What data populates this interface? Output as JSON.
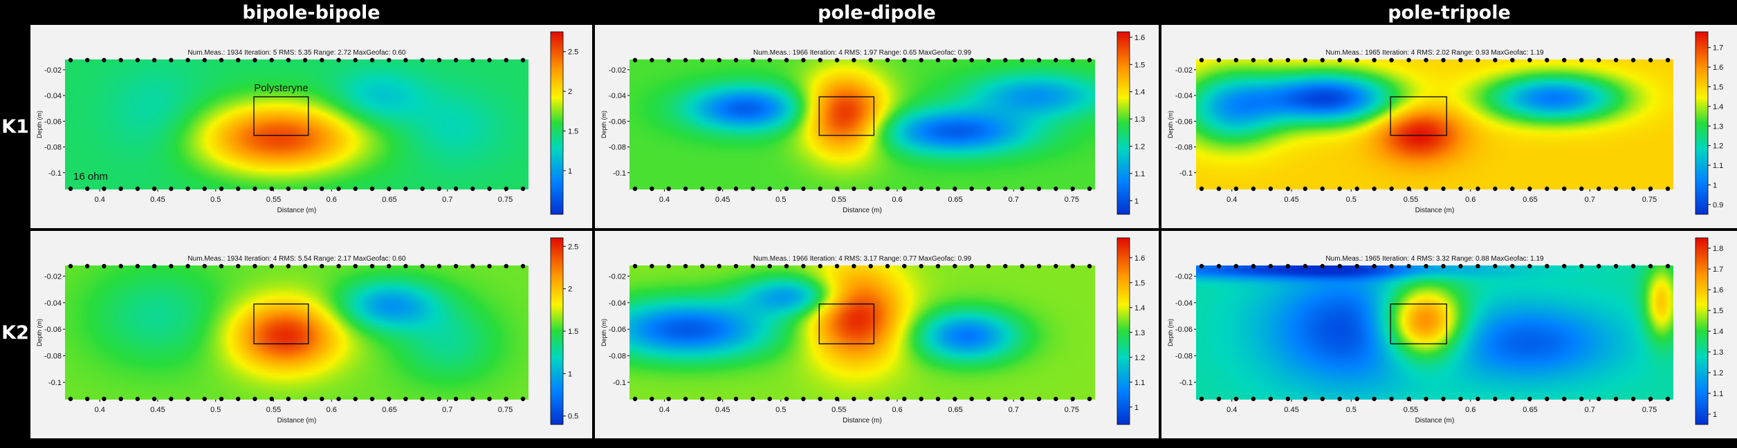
{
  "columns": [
    "bipole-bipole",
    "pole-dipole",
    "pole-tripole"
  ],
  "rows": [
    "K1",
    "K2"
  ],
  "colors": {
    "low": "#0030d0",
    "mid": "#f0f000",
    "high": "#e00000",
    "background": "#000000",
    "panel": "#f2f2f2"
  },
  "chart_data": [
    {
      "type": "heatmap",
      "configuration": "bipole-bipole",
      "row": "K1",
      "info": "Num.Meas.: 1934   Iteration: 5   RMS: 5.35   Range: 2.72   MaxGeofac: 0.60",
      "xlabel": "Distance (m)",
      "ylabel": "Depth (m)",
      "xticks": [
        "0.4",
        "0.45",
        "0.5",
        "0.55",
        "0.6",
        "0.65",
        "0.7",
        "0.75"
      ],
      "yticks": [
        "-0.02",
        "-0.04",
        "-0.06",
        "-0.08",
        "-0.1"
      ],
      "colorbar": {
        "ticks": [
          "1",
          "1.5",
          "2",
          "2.5"
        ],
        "range": [
          0.45,
          2.75
        ]
      },
      "xlim": [
        0.37,
        0.77
      ],
      "ylim": [
        -0.113,
        -0.012
      ],
      "target_box": {
        "x": [
          0.533,
          0.58
        ],
        "y": [
          -0.071,
          -0.041
        ]
      },
      "annotations": [
        "Polysteryne",
        "16 ohm"
      ],
      "background_value": 1.5,
      "anomalies": [
        {
          "x": 0.555,
          "y": -0.073,
          "sx": 0.05,
          "sy": 0.019,
          "value": 2.55
        },
        {
          "x": 0.64,
          "y": -0.042,
          "sx": 0.028,
          "sy": 0.015,
          "value": 1.15
        },
        {
          "x": 0.705,
          "y": -0.065,
          "sx": 0.03,
          "sy": 0.02,
          "value": 1.3
        },
        {
          "x": 0.45,
          "y": -0.055,
          "sx": 0.03,
          "sy": 0.025,
          "value": 1.3
        }
      ]
    },
    {
      "type": "heatmap",
      "configuration": "pole-dipole",
      "row": "K1",
      "info": "Num.Meas.: 1966   Iteration: 4   RMS: 1.97   Range: 0.65   MaxGeofac: 0.99",
      "xlabel": "Distance (m)",
      "ylabel": "Depth (m)",
      "xticks": [
        "0.4",
        "0.45",
        "0.5",
        "0.55",
        "0.6",
        "0.65",
        "0.7",
        "0.75"
      ],
      "yticks": [
        "-0.02",
        "-0.04",
        "-0.06",
        "-0.08",
        "-0.1"
      ],
      "colorbar": {
        "ticks": [
          "1",
          "1.1",
          "1.2",
          "1.3",
          "1.4",
          "1.5",
          "1.6"
        ],
        "range": [
          0.95,
          1.62
        ]
      },
      "xlim": [
        0.37,
        0.77
      ],
      "ylim": [
        -0.113,
        -0.012
      ],
      "target_box": {
        "x": [
          0.533,
          0.58
        ],
        "y": [
          -0.071,
          -0.041
        ]
      },
      "annotations": [],
      "background_value": 1.3,
      "anomalies": [
        {
          "x": 0.555,
          "y": -0.055,
          "sx": 0.025,
          "sy": 0.022,
          "value": 1.6
        },
        {
          "x": 0.47,
          "y": -0.05,
          "sx": 0.035,
          "sy": 0.012,
          "value": 1.02
        },
        {
          "x": 0.65,
          "y": -0.068,
          "sx": 0.045,
          "sy": 0.012,
          "value": 1.02
        },
        {
          "x": 0.72,
          "y": -0.04,
          "sx": 0.04,
          "sy": 0.012,
          "value": 1.1
        }
      ]
    },
    {
      "type": "heatmap",
      "configuration": "pole-tripole",
      "row": "K1",
      "info": "Num.Meas.: 1965   Iteration: 4   RMS: 2.02   Range: 0.93   MaxGeofac: 1.19",
      "xlabel": "Distance (m)",
      "ylabel": "Depth (m)",
      "xticks": [
        "0.4",
        "0.45",
        "0.5",
        "0.55",
        "0.6",
        "0.65",
        "0.7",
        "0.75"
      ],
      "yticks": [
        "-0.02",
        "-0.04",
        "-0.06",
        "-0.08",
        "-0.1"
      ],
      "colorbar": {
        "ticks": [
          "0.9",
          "1",
          "1.1",
          "1.2",
          "1.3",
          "1.4",
          "1.5",
          "1.6",
          "1.7"
        ],
        "range": [
          0.85,
          1.78
        ]
      },
      "xlim": [
        0.37,
        0.77
      ],
      "ylim": [
        -0.113,
        -0.012
      ],
      "target_box": {
        "x": [
          0.533,
          0.58
        ],
        "y": [
          -0.071,
          -0.041
        ]
      },
      "annotations": [],
      "background_value": 1.5,
      "anomalies": [
        {
          "x": 0.557,
          "y": -0.07,
          "sx": 0.025,
          "sy": 0.015,
          "value": 1.78
        },
        {
          "x": 0.48,
          "y": -0.042,
          "sx": 0.04,
          "sy": 0.014,
          "value": 0.9
        },
        {
          "x": 0.67,
          "y": -0.042,
          "sx": 0.04,
          "sy": 0.013,
          "value": 1.0
        },
        {
          "x": 0.4,
          "y": -0.05,
          "sx": 0.03,
          "sy": 0.02,
          "value": 1.1
        }
      ]
    },
    {
      "type": "heatmap",
      "configuration": "bipole-bipole",
      "row": "K2",
      "info": "Num.Meas.: 1934   Iteration: 4   RMS: 5.54   Range: 2.17   MaxGeofac: 0.60",
      "xlabel": "Distance (m)",
      "ylabel": "Depth (m)",
      "xticks": [
        "0.4",
        "0.45",
        "0.5",
        "0.55",
        "0.6",
        "0.65",
        "0.7",
        "0.75"
      ],
      "yticks": [
        "-0.02",
        "-0.04",
        "-0.06",
        "-0.08",
        "-0.1"
      ],
      "colorbar": {
        "ticks": [
          "0.5",
          "1",
          "1.5",
          "2",
          "2.5"
        ],
        "range": [
          0.4,
          2.6
        ]
      },
      "xlim": [
        0.37,
        0.77
      ],
      "ylim": [
        -0.113,
        -0.012
      ],
      "target_box": {
        "x": [
          0.533,
          0.58
        ],
        "y": [
          -0.071,
          -0.041
        ]
      },
      "annotations": [],
      "background_value": 1.6,
      "anomalies": [
        {
          "x": 0.56,
          "y": -0.065,
          "sx": 0.032,
          "sy": 0.018,
          "value": 2.5
        },
        {
          "x": 0.65,
          "y": -0.042,
          "sx": 0.03,
          "sy": 0.013,
          "value": 0.9
        },
        {
          "x": 0.45,
          "y": -0.05,
          "sx": 0.04,
          "sy": 0.025,
          "value": 1.3
        },
        {
          "x": 0.7,
          "y": -0.07,
          "sx": 0.03,
          "sy": 0.02,
          "value": 1.3
        }
      ]
    },
    {
      "type": "heatmap",
      "configuration": "pole-dipole",
      "row": "K2",
      "info": "Num.Meas.: 1966   Iteration: 4   RMS: 3.17   Range: 0.77   MaxGeofac: 0.99",
      "xlabel": "Distance (m)",
      "ylabel": "Depth (m)",
      "xticks": [
        "0.4",
        "0.45",
        "0.5",
        "0.55",
        "0.6",
        "0.65",
        "0.7",
        "0.75"
      ],
      "yticks": [
        "-0.02",
        "-0.04",
        "-0.06",
        "-0.08",
        "-0.1"
      ],
      "colorbar": {
        "ticks": [
          "1",
          "1.1",
          "1.2",
          "1.3",
          "1.4",
          "1.5",
          "1.6"
        ],
        "range": [
          0.93,
          1.68
        ]
      },
      "xlim": [
        0.37,
        0.77
      ],
      "ylim": [
        -0.113,
        -0.012
      ],
      "target_box": {
        "x": [
          0.533,
          0.58
        ],
        "y": [
          -0.071,
          -0.041
        ]
      },
      "annotations": [],
      "background_value": 1.35,
      "anomalies": [
        {
          "x": 0.565,
          "y": -0.05,
          "sx": 0.028,
          "sy": 0.025,
          "value": 1.66
        },
        {
          "x": 0.42,
          "y": -0.06,
          "sx": 0.05,
          "sy": 0.015,
          "value": 1.0
        },
        {
          "x": 0.66,
          "y": -0.065,
          "sx": 0.03,
          "sy": 0.013,
          "value": 1.05
        },
        {
          "x": 0.51,
          "y": -0.035,
          "sx": 0.03,
          "sy": 0.01,
          "value": 1.1
        }
      ]
    },
    {
      "type": "heatmap",
      "configuration": "pole-tripole",
      "row": "K2",
      "info": "Num.Meas.: 1965   Iteration: 4   RMS: 3.32   Range: 0.88   MaxGeofac: 1.19",
      "xlabel": "Distance (m)",
      "ylabel": "Depth (m)",
      "xticks": [
        "0.4",
        "0.45",
        "0.5",
        "0.55",
        "0.6",
        "0.65",
        "0.7",
        "0.75"
      ],
      "yticks": [
        "-0.02",
        "-0.04",
        "-0.06",
        "-0.08",
        "-0.1"
      ],
      "colorbar": {
        "ticks": [
          "1",
          "1.1",
          "1.2",
          "1.3",
          "1.4",
          "1.5",
          "1.6",
          "1.7",
          "1.8"
        ],
        "range": [
          0.95,
          1.85
        ]
      },
      "xlim": [
        0.37,
        0.77
      ],
      "ylim": [
        -0.113,
        -0.012
      ],
      "target_box": {
        "x": [
          0.533,
          0.58
        ],
        "y": [
          -0.071,
          -0.041
        ]
      },
      "annotations": [],
      "background_value": 1.3,
      "anomalies": [
        {
          "x": 0.56,
          "y": -0.055,
          "sx": 0.025,
          "sy": 0.02,
          "value": 1.85
        },
        {
          "x": 0.5,
          "y": -0.06,
          "sx": 0.05,
          "sy": 0.03,
          "value": 1.0
        },
        {
          "x": 0.65,
          "y": -0.07,
          "sx": 0.05,
          "sy": 0.02,
          "value": 1.05
        },
        {
          "x": 0.76,
          "y": -0.04,
          "sx": 0.01,
          "sy": 0.02,
          "value": 1.6
        },
        {
          "x": 0.45,
          "y": -0.015,
          "sx": 0.1,
          "sy": 0.005,
          "value": 1.0
        }
      ]
    }
  ]
}
